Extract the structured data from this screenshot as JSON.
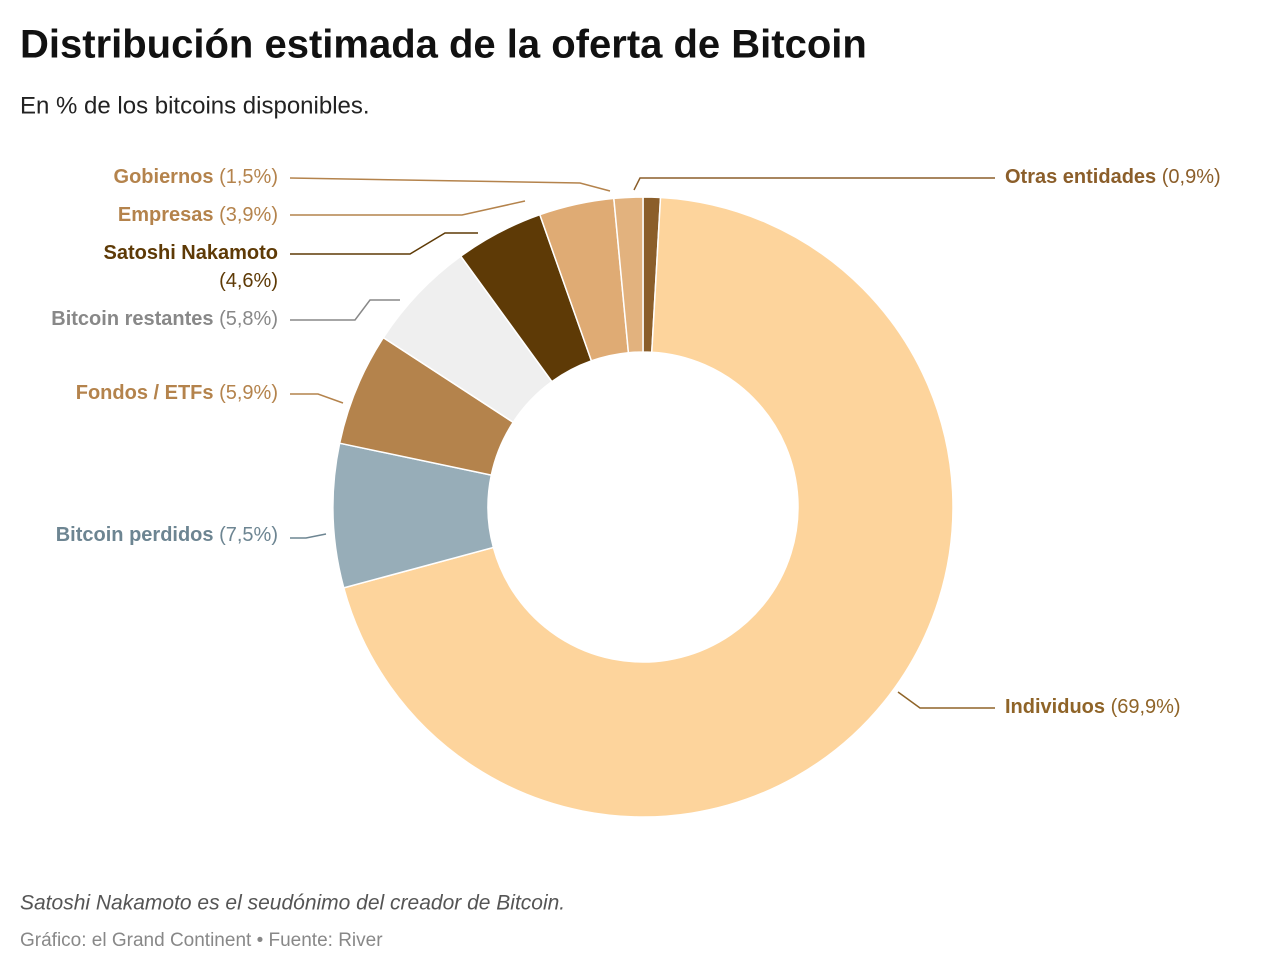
{
  "chart_data": {
    "type": "pie",
    "title": "Distribución estimada de la oferta de Bitcoin",
    "subtitle": "En % de los bitcoins disponibles.",
    "categories": [
      "Otras entidades",
      "Individuos",
      "Bitcoin perdidos",
      "Fondos / ETFs",
      "Bitcoin restantes",
      "Satoshi Nakamoto",
      "Empresas",
      "Gobiernos"
    ],
    "values": [
      0.9,
      69.9,
      7.5,
      5.9,
      5.8,
      4.6,
      3.9,
      1.5
    ],
    "value_labels": [
      "(0,9%)",
      "(69,9%)",
      "(7,5%)",
      "(5,9%)",
      "(5,8%)",
      "(4,6%)",
      "(3,9%)",
      "(1,5%)"
    ],
    "colors": [
      "#8b5e2a",
      "#fdd49c",
      "#97adb8",
      "#b4834c",
      "#efefef",
      "#5e3a06",
      "#dfab74",
      "#e2b27e"
    ],
    "label_colors": [
      "#8b5e2a",
      "#8f6428",
      "#6d8592",
      "#b4834c",
      "#888888",
      "#5e3a06",
      "#b4834c",
      "#b4834c"
    ],
    "note": "Satoshi Nakamoto es el seudónimo del creador de Bitcoin.",
    "source": "Gráfico: el Grand Continent • Fuente: River"
  }
}
